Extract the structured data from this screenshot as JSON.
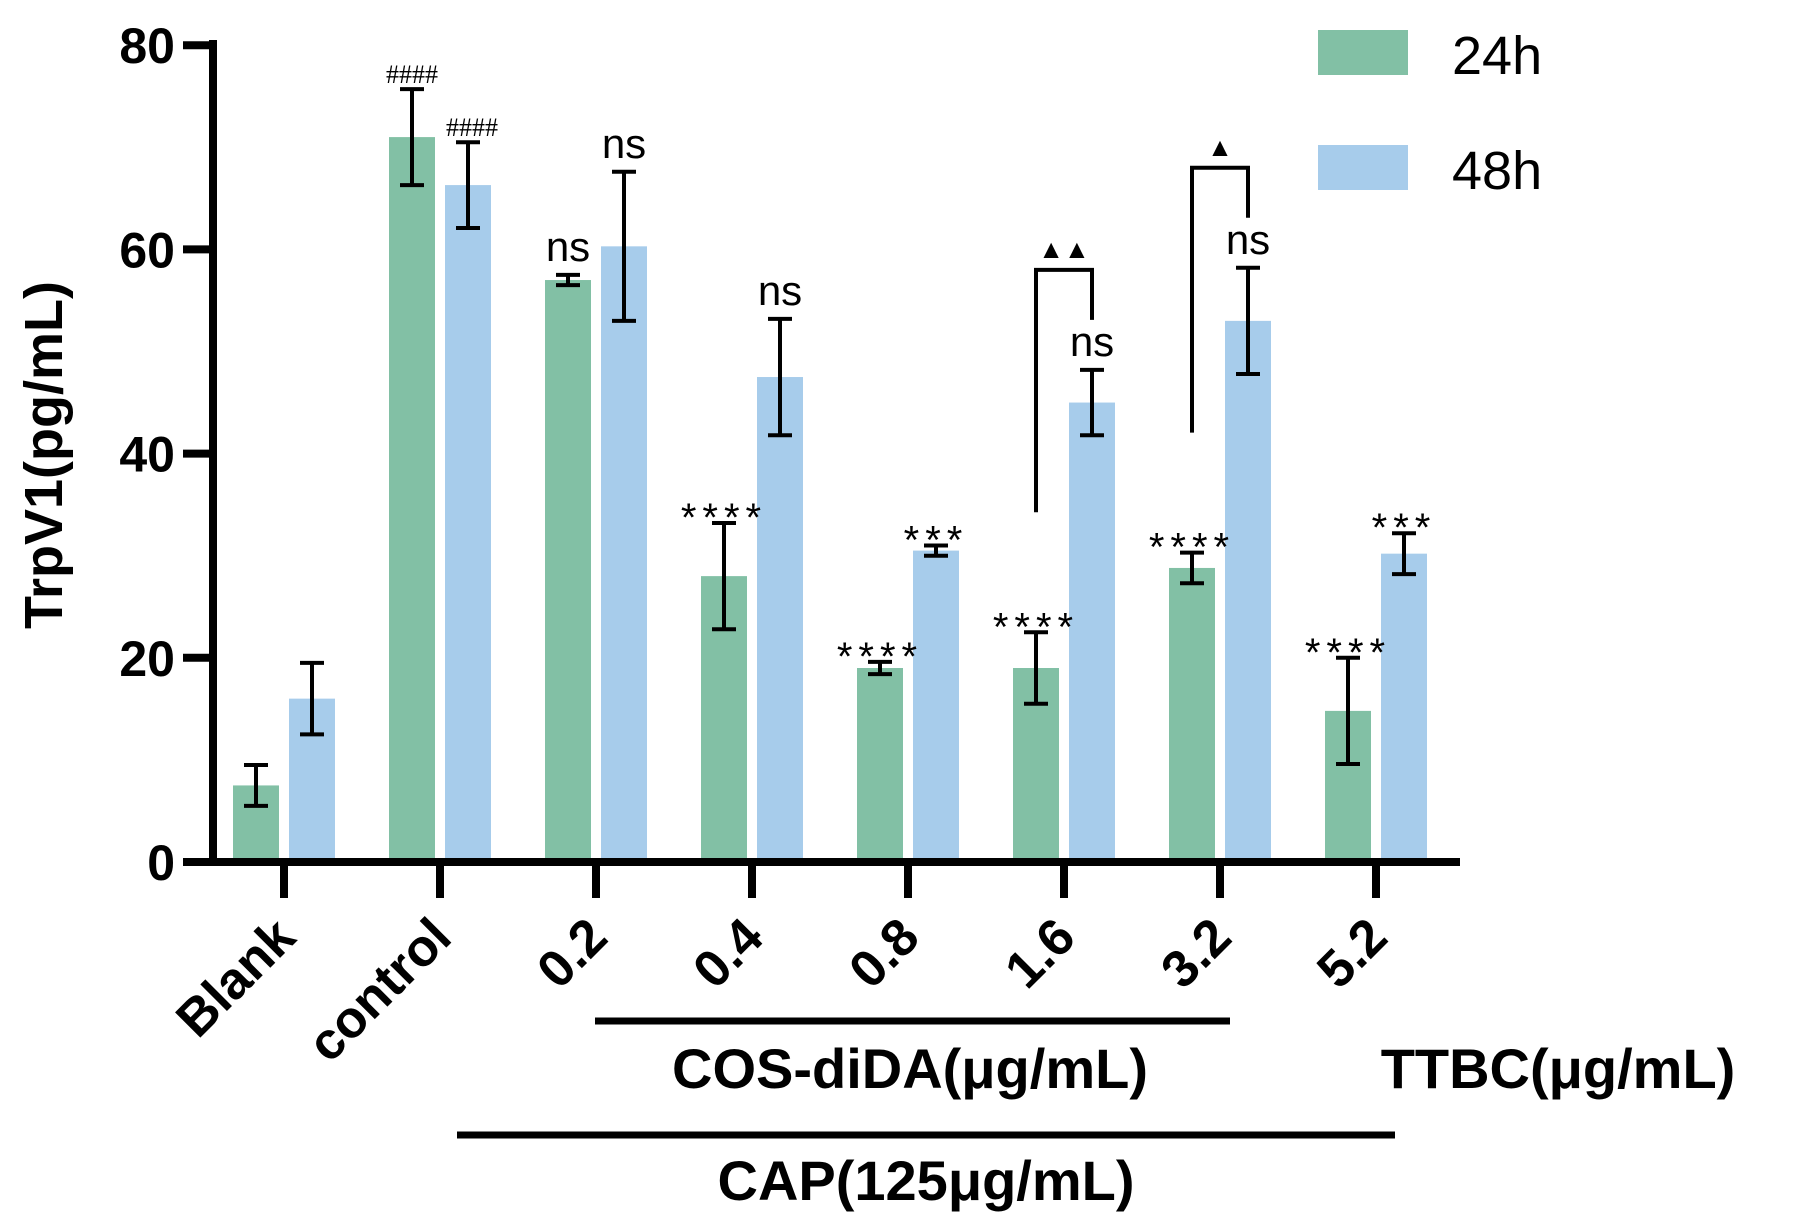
{
  "chart_data": {
    "type": "bar",
    "title": "",
    "xlabel": "",
    "ylabel": "TrpV1(pg/mL)",
    "ylim": [
      0,
      80
    ],
    "yticks": [
      "0",
      "20",
      "40",
      "60",
      "80"
    ],
    "categories": [
      "Blank",
      "control",
      "0.2",
      "0.4",
      "0.8",
      "1.6",
      "3.2",
      "5.2"
    ],
    "series": [
      {
        "name": "24h",
        "color": "#82c0a5",
        "values": [
          7.5,
          71.0,
          57.0,
          28.0,
          19.0,
          19.0,
          28.8,
          14.8
        ],
        "errors": [
          2.0,
          4.7,
          0.5,
          5.2,
          0.6,
          3.5,
          1.5,
          5.2
        ],
        "labels": [
          "",
          "####",
          "ns",
          "****",
          "****",
          "****",
          "****",
          "****"
        ]
      },
      {
        "name": "48h",
        "color": "#a7cceb",
        "values": [
          16.0,
          66.3,
          60.3,
          47.5,
          30.5,
          45.0,
          53.0,
          30.2
        ],
        "errors": [
          3.5,
          4.2,
          7.3,
          5.7,
          0.5,
          3.2,
          5.2,
          2.0
        ],
        "labels": [
          "",
          "####",
          "ns",
          "ns",
          "***",
          "ns",
          "ns",
          "***"
        ]
      }
    ],
    "comparisons": [
      {
        "category": "1.6",
        "symbol": "▲▲"
      },
      {
        "category": "3.2",
        "symbol": "▲"
      }
    ],
    "group_labels": {
      "cos": "COS-diDA(μg/mL)",
      "ttbc": "TTBC(μg/mL)",
      "cap": "CAP(125μg/mL)"
    },
    "legend_position": "top-right"
  }
}
